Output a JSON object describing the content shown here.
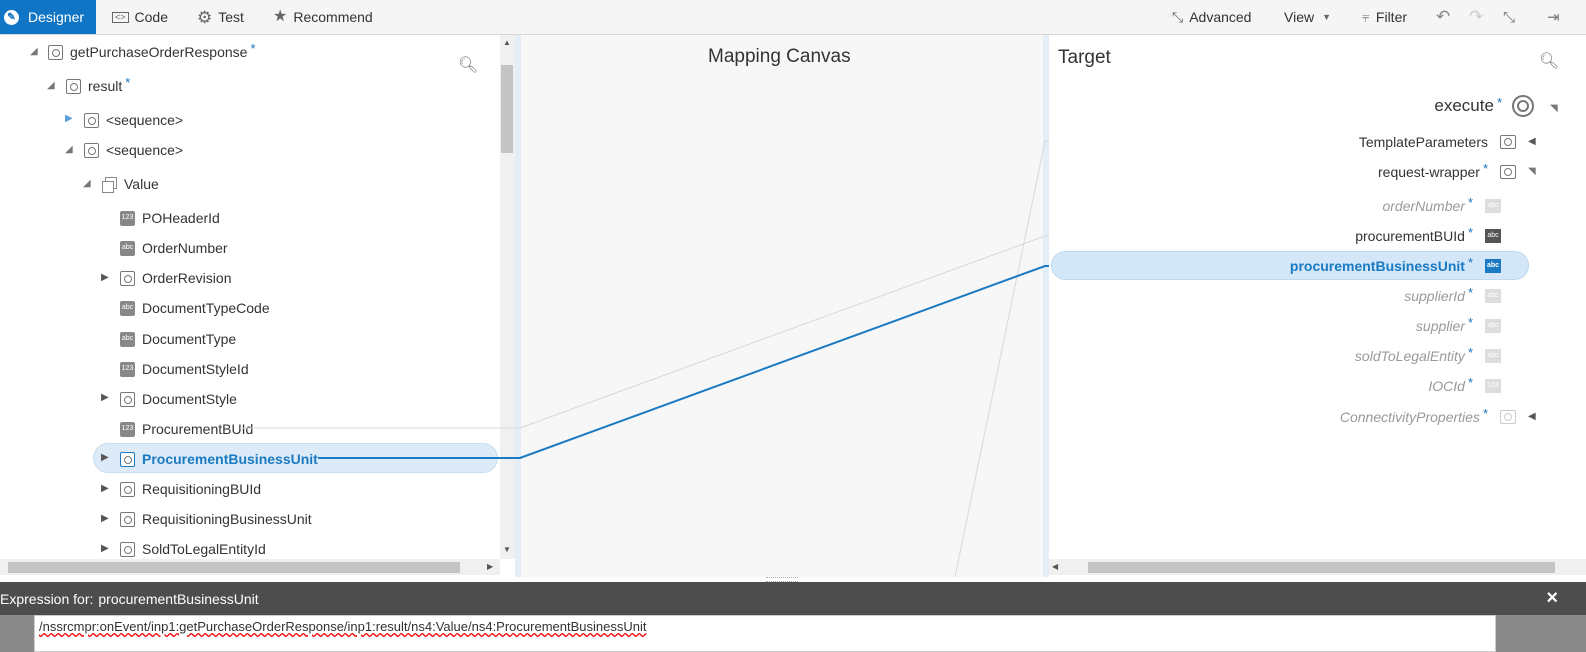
{
  "toolbar": {
    "designer": "Designer",
    "code": "Code",
    "test": "Test",
    "recommend": "Recommend",
    "advanced": "Advanced",
    "view": "View",
    "filter": "Filter"
  },
  "canvas": {
    "title": "Mapping Canvas"
  },
  "source": {
    "root": "getPurchaseOrderResponse",
    "result": "result",
    "sequence1": "<sequence>",
    "sequence2": "<sequence>",
    "value": "Value",
    "items": [
      "POHeaderId",
      "OrderNumber",
      "OrderRevision",
      "DocumentTypeCode",
      "DocumentType",
      "DocumentStyleId",
      "DocumentStyle",
      "ProcurementBUId",
      "ProcurementBusinessUnit",
      "RequisitioningBUId",
      "RequisitioningBusinessUnit",
      "SoldToLegalEntityId"
    ]
  },
  "target": {
    "title": "Target",
    "execute": "execute",
    "template_parameters": "TemplateParameters",
    "request_wrapper": "request-wrapper",
    "fields": [
      "orderNumber",
      "procurementBUId",
      "procurementBusinessUnit",
      "supplierId",
      "supplier",
      "soldToLegalEntity",
      "IOCId",
      "ConnectivityProperties"
    ]
  },
  "expression": {
    "label": "Expression for:",
    "field": "procurementBusinessUnit",
    "value": "/nssrcmpr:onEvent/inp1:getPurchaseOrderResponse/inp1:result/ns4:Value/ns4:ProcurementBusinessUnit",
    "close": "×"
  },
  "icons": {
    "num_label": "123",
    "abc_label": "abc"
  },
  "colors": {
    "accent": "#0f75c4",
    "mapping_line": "#1a7ac2"
  }
}
